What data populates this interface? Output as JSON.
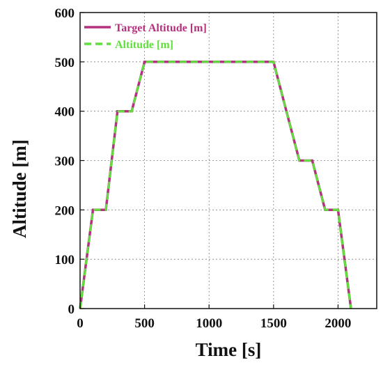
{
  "chart_data": {
    "type": "line",
    "xlabel": "Time [s]",
    "ylabel": "Altitude [m]",
    "xlim": [
      0,
      2300
    ],
    "ylim": [
      0,
      600
    ],
    "x_ticks": [
      0,
      500,
      1000,
      1500,
      2000
    ],
    "y_ticks": [
      0,
      100,
      200,
      300,
      400,
      500,
      600
    ],
    "grid": true,
    "legend_position": "top-left",
    "series": [
      {
        "name": "Target Altitude [m]",
        "color": "#b5307f",
        "line_style": "solid",
        "x": [
          0,
          100,
          200,
          290,
          400,
          500,
          1500,
          1600,
          1700,
          1800,
          1900,
          2000,
          2100
        ],
        "y": [
          0,
          200,
          200,
          400,
          400,
          500,
          500,
          400,
          300,
          300,
          200,
          200,
          0
        ]
      },
      {
        "name": "Altitude [m]",
        "color": "#5fe03a",
        "line_style": "dashed",
        "x": [
          0,
          100,
          200,
          290,
          400,
          500,
          1500,
          1600,
          1700,
          1800,
          1900,
          2000,
          2100
        ],
        "y": [
          0,
          200,
          200,
          400,
          400,
          500,
          500,
          400,
          300,
          300,
          200,
          200,
          0
        ]
      }
    ]
  }
}
